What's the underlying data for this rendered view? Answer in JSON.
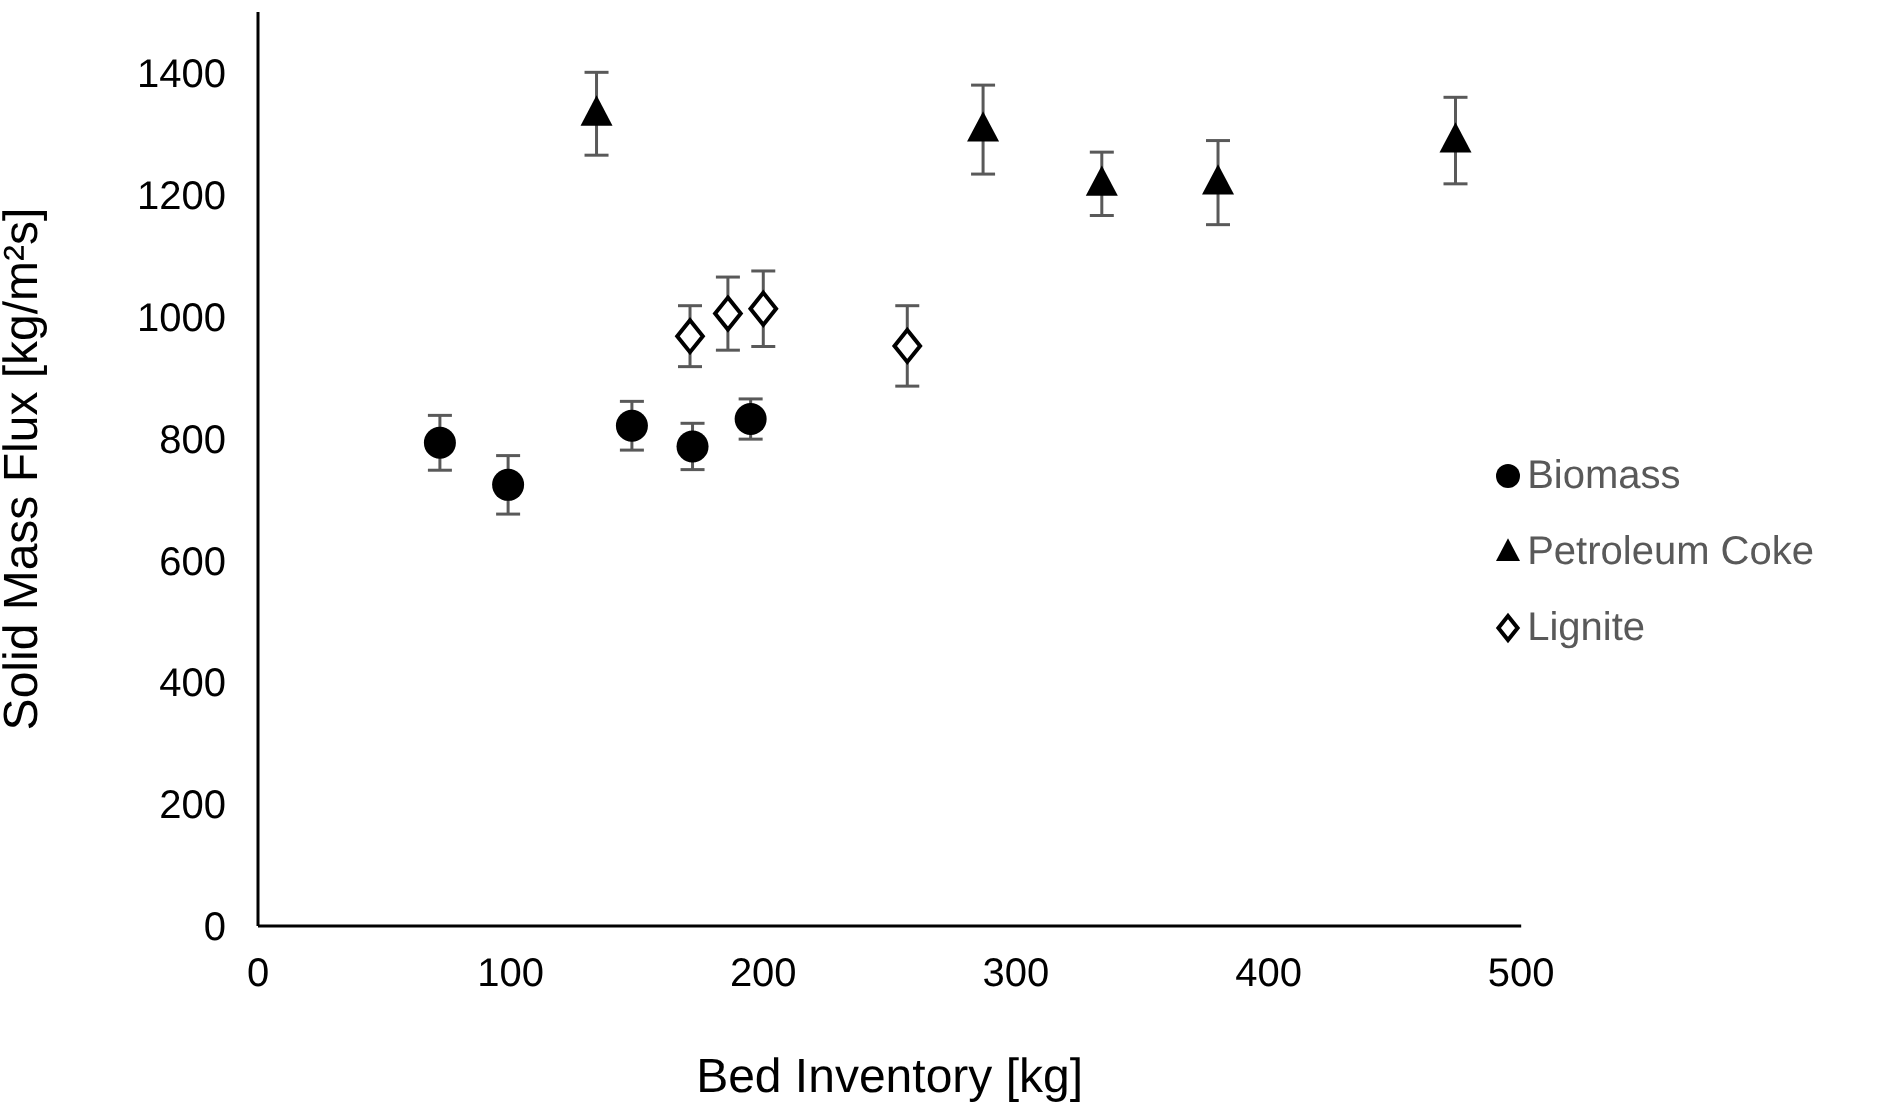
{
  "chart_data": {
    "type": "scatter",
    "xlabel": "Bed Inventory [kg]",
    "ylabel": "Solid Mass Flux [kg/m²s]",
    "xlim": [
      0,
      500
    ],
    "xticks": [
      0,
      100,
      200,
      300,
      400,
      500
    ],
    "ylim": [
      0,
      1500
    ],
    "yticks": [
      0,
      200,
      400,
      600,
      800,
      1000,
      1200,
      1400
    ],
    "grid": false,
    "legend": "right",
    "series": [
      {
        "name": "Biomass",
        "color": "#000000",
        "marker": "circle",
        "x": [
          72,
          99,
          148,
          172,
          195
        ],
        "values": [
          793,
          724,
          821,
          787,
          832
        ],
        "errors": [
          45,
          48,
          40,
          38,
          33
        ]
      },
      {
        "name": "Petroleum Coke",
        "color": "#000000",
        "marker": "triangle",
        "x": [
          134,
          287,
          334,
          380,
          474
        ],
        "values": [
          1333,
          1307,
          1218,
          1220,
          1289
        ],
        "errors": [
          68,
          73,
          52,
          69,
          71
        ]
      },
      {
        "name": "Lignite",
        "color": "#000000",
        "marker": "diamond",
        "x": [
          171,
          186,
          200,
          257
        ],
        "values": [
          968,
          1005,
          1013,
          952
        ],
        "errors": [
          50,
          60,
          62,
          66
        ]
      }
    ]
  }
}
